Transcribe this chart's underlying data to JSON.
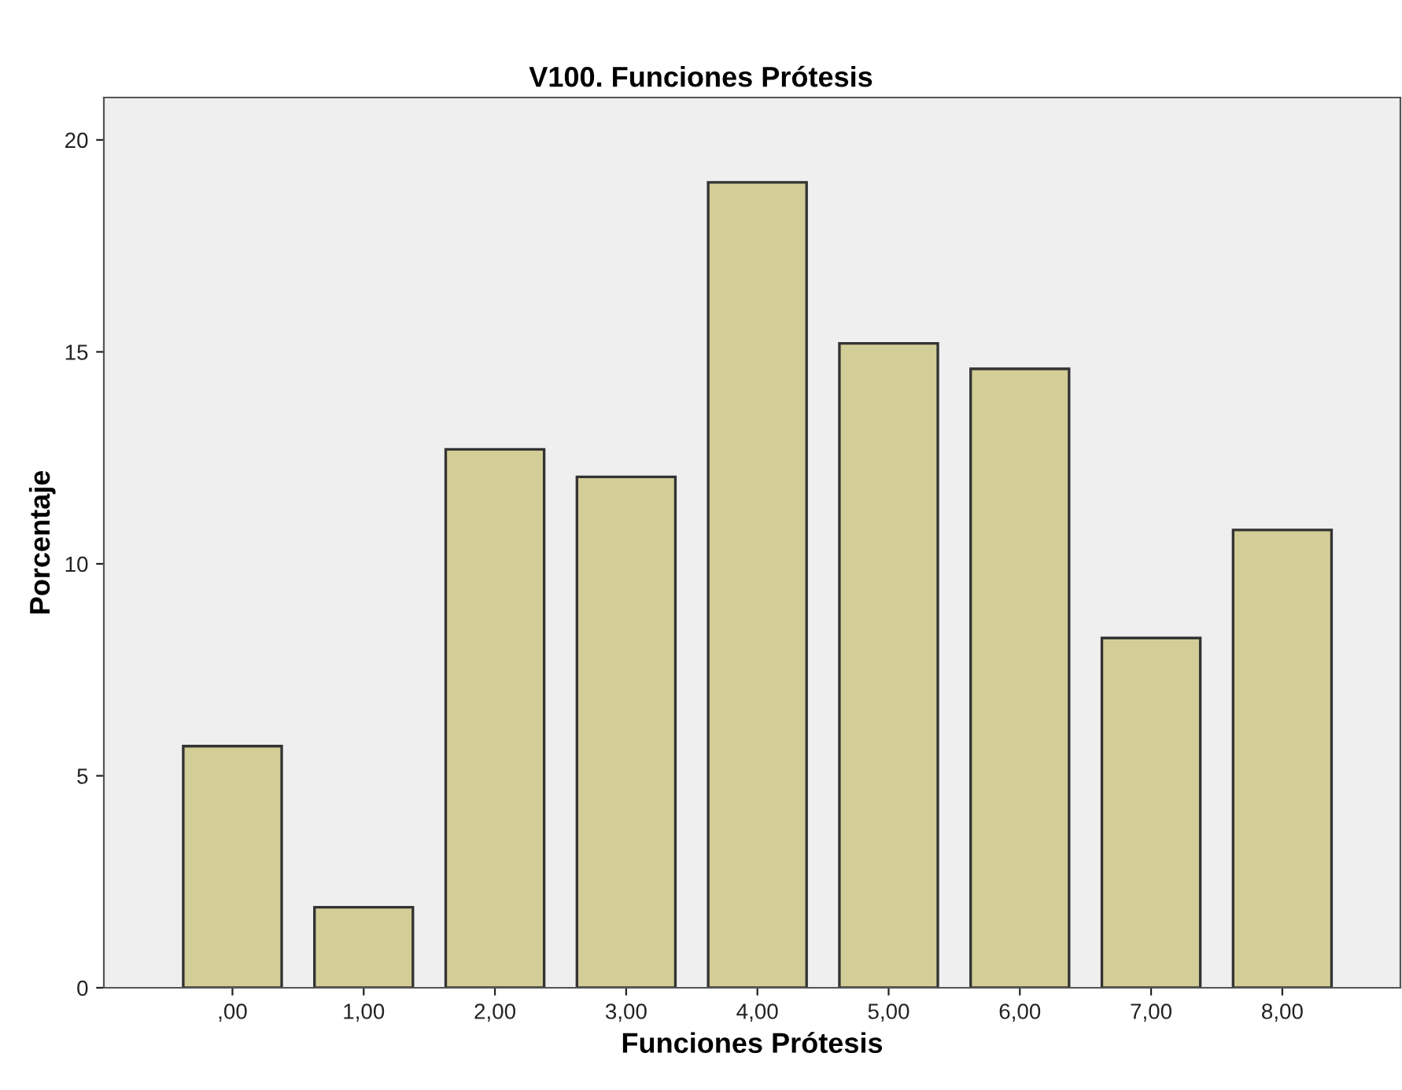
{
  "chart_data": {
    "type": "bar",
    "title": "V100. Funciones Prótesis",
    "xlabel": "Funciones Prótesis",
    "ylabel": "Porcentaje",
    "categories": [
      ",00",
      "1,00",
      "2,00",
      "3,00",
      "4,00",
      "5,00",
      "6,00",
      "7,00",
      "8,00"
    ],
    "values": [
      5.7,
      1.9,
      12.7,
      12.05,
      19.0,
      15.2,
      14.6,
      8.25,
      10.8
    ],
    "color": "#d3cd97",
    "ylim": [
      0,
      21
    ],
    "yticks": [
      0,
      5,
      10,
      15,
      20
    ],
    "grid": false,
    "legend": false
  }
}
